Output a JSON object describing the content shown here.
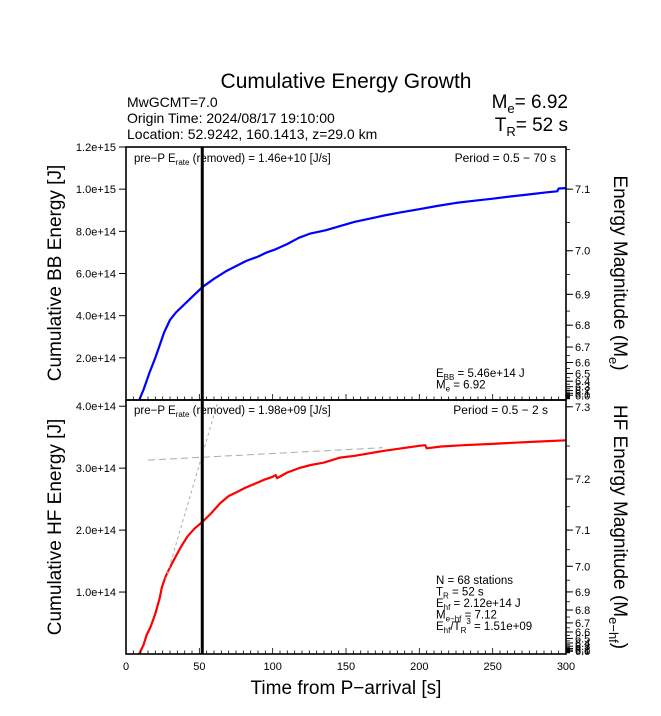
{
  "chart_data": {
    "type": "line",
    "title": "Cumulative Energy Growth",
    "header": {
      "event_mw": "MwGCMT=7.0",
      "origin_time": "Origin Time: 2024/08/17 19:10:00",
      "location": "Location: 52.9242, 160.1413, z=29.0 km",
      "me_label_main": "M",
      "me_label_sub": "e",
      "me_value": "= 6.92",
      "tr_label_main": "T",
      "tr_label_sub": "R",
      "tr_value": "= 52 s"
    },
    "xlabel": "Time from P−arrival [s]",
    "xlim": [
      0,
      300
    ],
    "x_ticks": [
      0,
      50,
      100,
      150,
      200,
      250,
      300
    ],
    "x_minor_step": 5,
    "rupture_duration_s": 52,
    "panels": [
      {
        "name": "broadband",
        "ylabel": "Cumulative BB Energy [J]",
        "ylim": [
          0,
          1200000000000000.0
        ],
        "y_ticks": [
          200000000000000.0,
          400000000000000.0,
          600000000000000.0,
          800000000000000.0,
          1000000000000000.0,
          1200000000000000.0
        ],
        "y_tick_labels": [
          "2.0e+14",
          "4.0e+14",
          "6.0e+14",
          "8.0e+14",
          "1.0e+15",
          "1.2e+15"
        ],
        "right_ylabel_main": "Energy Magnitude (M",
        "right_ylabel_sub": "e",
        "right_ylabel_end": ")",
        "magnitude_ref": {
          "mag": 7.1,
          "energy": 1000000000000000.0
        },
        "right_ticks": [
          7.1,
          7.0,
          6.9,
          6.8,
          6.7,
          6.6,
          6.5,
          6.4,
          6.3,
          6.2,
          6.1,
          6.0
        ],
        "right_tick_labels_shown": [
          "7.1",
          "7.0",
          "6.9",
          "6.8",
          "6.7",
          "6.6",
          "6.5"
        ],
        "pre_p_text_main": "pre−P E",
        "pre_p_text_sub": "rate",
        "pre_p_text_end": " (removed) = 1.46e+10 [J/s]",
        "period_text": "Period = 0.5 − 70 s",
        "stats": [
          {
            "main": "E",
            "sub": "BB",
            "end": " = 5.46e+14 J"
          },
          {
            "main": "M",
            "sub": "e",
            "end": " = 6.92"
          }
        ],
        "series": [
          {
            "name": "BB energy",
            "color": "#0000ff",
            "x": [
              9,
              12,
              16,
              20,
              22.5,
              26,
              30,
              34,
              40,
              46,
              52,
              60,
              68,
              75,
              82,
              90,
              96,
              102,
              110,
              118,
              126,
              136,
              146,
              156,
              166,
              176,
              187,
              200,
              212,
              225,
              237,
              250,
              262,
              275,
              287,
              294,
              295,
              300
            ],
            "y": [
              0.0,
              50000000000000.0,
              130000000000000.0,
              200000000000000.0,
              250000000000000.0,
              320000000000000.0,
              380000000000000.0,
              415000000000000.0,
              455000000000000.0,
              495000000000000.0,
              535000000000000.0,
              575000000000000.0,
              610000000000000.0,
              635000000000000.0,
              660000000000000.0,
              680000000000000.0,
              700000000000000.0,
              715000000000000.0,
              740000000000000.0,
              770000000000000.0,
              790000000000000.0,
              805000000000000.0,
              825000000000000.0,
              845000000000000.0,
              860000000000000.0,
              875000000000000.0,
              890000000000000.0,
              905000000000000.0,
              920000000000000.0,
              935000000000000.0,
              945000000000000.0,
              955000000000000.0,
              965000000000000.0,
              975000000000000.0,
              985000000000000.0,
              990000000000000.0,
              1003000000000000.0,
              1005000000000000.0
            ]
          }
        ]
      },
      {
        "name": "high-frequency",
        "ylabel": "Cumulative HF Energy [J]",
        "ylim": [
          0,
          410000000000000.0
        ],
        "y_ticks": [
          100000000000000.0,
          200000000000000.0,
          300000000000000.0,
          400000000000000.0
        ],
        "y_tick_labels": [
          "1.0e+14",
          "2.0e+14",
          "3.0e+14",
          "4.0e+14"
        ],
        "right_ylabel_main": "HF Energy Magnitude (M",
        "right_ylabel_sub": "e−hf",
        "right_ylabel_end": ")",
        "magnitude_ref": {
          "mag": 7.1,
          "energy": 200000000000000.0
        },
        "right_ticks": [
          7.3,
          7.2,
          7.1,
          7.0,
          6.9,
          6.8,
          6.7,
          6.6,
          6.5,
          6.4,
          6.3,
          6.2,
          6.1,
          6.0
        ],
        "right_tick_labels_shown": [
          "7.3",
          "7.2",
          "7.1",
          "7.0",
          "6.9",
          "6.8",
          "6.7",
          "6.6"
        ],
        "pre_p_text_main": "pre−P E",
        "pre_p_text_sub": "rate",
        "pre_p_text_end": " (removed) = 1.98e+09 [J/s]",
        "period_text": "Period = 0.5 − 2 s",
        "stats": [
          {
            "main": "N = 68 stations",
            "sub": "",
            "end": ""
          },
          {
            "main": "T",
            "sub": "R",
            "end": " = 52  s"
          },
          {
            "main": "E",
            "sub": "hf",
            "end": " = 2.12e+14 J"
          },
          {
            "main": "M",
            "sub": "e−hf",
            "end": " = 7.12"
          },
          {
            "main": "E",
            "sub": "hf",
            "end": "/T",
            "sub2": "R",
            "sup": "3",
            "end2": " =  1.51e+09"
          }
        ],
        "series": [
          {
            "name": "HF energy",
            "color": "#ff0000",
            "x": [
              9,
              12,
              14,
              17,
              20,
              23,
              24.5,
              27,
              30,
              34,
              38,
              42,
              47,
              52,
              58,
              64,
              70,
              76,
              81,
              88,
              95,
              100,
              102,
              103,
              110,
              118,
              126,
              135,
              146,
              156,
              166,
              176,
              191,
              200,
              204,
              205,
              215,
              230,
              248,
              265,
              282,
              300
            ],
            "y": [
              0.0,
              15000000000000.0,
              30000000000000.0,
              45000000000000.0,
              65000000000000.0,
              90000000000000.0,
              108000000000000.0,
              125000000000000.0,
              140000000000000.0,
              158000000000000.0,
              175000000000000.0,
              190000000000000.0,
              203000000000000.0,
              213000000000000.0,
              227000000000000.0,
              243000000000000.0,
              255000000000000.0,
              262000000000000.0,
              268000000000000.0,
              275000000000000.0,
              282000000000000.0,
              286000000000000.0,
              289000000000000.0,
              284000000000000.0,
              293000000000000.0,
              300000000000000.0,
              305000000000000.0,
              309000000000000.0,
              317000000000000.0,
              320000000000000.0,
              324000000000000.0,
              328000000000000.0,
              333000000000000.0,
              336000000000000.0,
              337000000000000.0,
              332000000000000.0,
              335000000000000.0,
              337000000000000.0,
              339000000000000.0,
              341000000000000.0,
              343000000000000.0,
              345000000000000.0
            ]
          },
          {
            "name": "early slope fit",
            "color": "#aaaaaa",
            "dashed": true,
            "x": [
              27,
              63
            ],
            "y": [
              120000000000000.0,
              410000000000000.0
            ]
          },
          {
            "name": "late slope fit",
            "color": "#aaaaaa",
            "dashed": true,
            "x": [
              15,
              175
            ],
            "y": [
              313000000000000.0,
              333000000000000.0
            ]
          }
        ]
      }
    ]
  }
}
